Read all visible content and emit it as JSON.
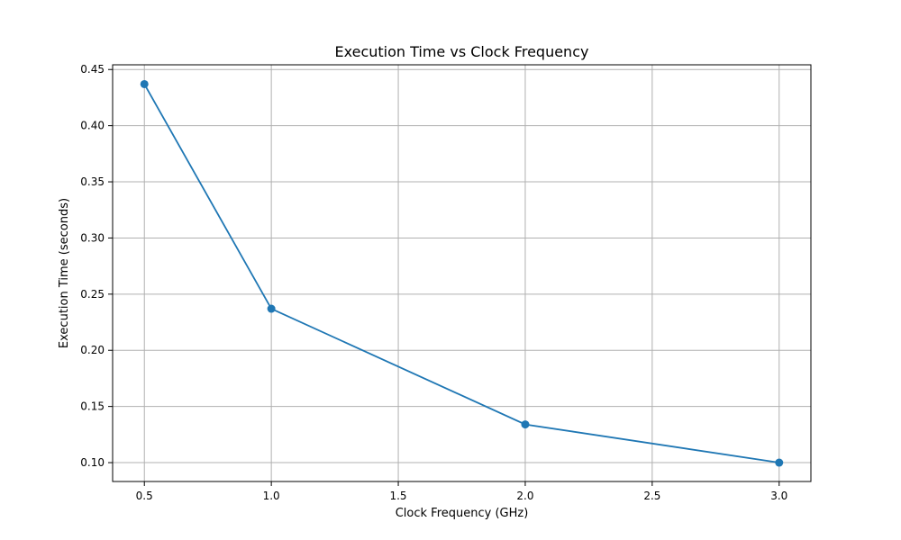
{
  "chart_data": {
    "type": "line",
    "title": "Execution Time vs Clock Frequency",
    "xlabel": "Clock Frequency (GHz)",
    "ylabel": "Execution Time (seconds)",
    "xlim": [
      0.375,
      3.125
    ],
    "ylim": [
      0.0832,
      0.4542
    ],
    "x_ticks": [
      0.5,
      1.0,
      1.5,
      2.0,
      2.5,
      3.0
    ],
    "x_tick_labels": [
      "0.5",
      "1.0",
      "1.5",
      "2.0",
      "2.5",
      "3.0"
    ],
    "y_ticks": [
      0.1,
      0.15,
      0.2,
      0.25,
      0.3,
      0.35,
      0.4,
      0.45
    ],
    "y_tick_labels": [
      "0.10",
      "0.15",
      "0.20",
      "0.25",
      "0.30",
      "0.35",
      "0.40",
      "0.45"
    ],
    "grid": true,
    "series": [
      {
        "x": [
          0.5,
          1.0,
          2.0,
          3.0
        ],
        "y": [
          0.437,
          0.237,
          0.134,
          0.1
        ],
        "color": "#1f77b4",
        "marker": "circle"
      }
    ]
  }
}
